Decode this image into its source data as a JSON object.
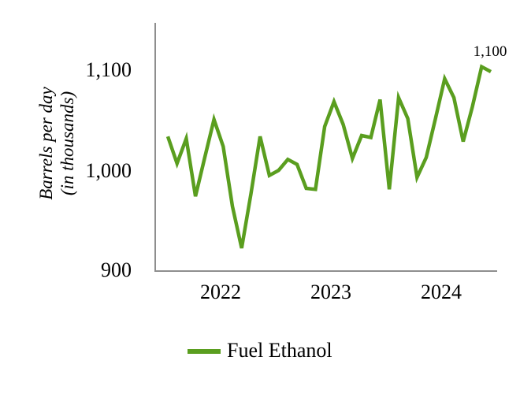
{
  "chart": {
    "y_axis": {
      "title_line1": "Barrels per day",
      "title_line2": "(in thousands)",
      "ticks": [
        "1,100",
        "1,000",
        "900"
      ]
    },
    "x_axis": {
      "ticks": [
        "2022",
        "2023",
        "2024"
      ]
    },
    "annotation": "1,100",
    "legend": {
      "label": "Fuel Ethanol"
    }
  },
  "chart_data": {
    "type": "line",
    "title": "",
    "xlabel": "",
    "ylabel": "Barrels per day (in thousands)",
    "unit": "thousand barrels per day",
    "series": [
      {
        "name": "Fuel Ethanol",
        "color": "#5a9e1f",
        "x": [
          "2022-01",
          "2022-02",
          "2022-03",
          "2022-04",
          "2022-05",
          "2022-06",
          "2022-07",
          "2022-08",
          "2022-09",
          "2022-10",
          "2022-11",
          "2022-12",
          "2023-01",
          "2023-02",
          "2023-03",
          "2023-04",
          "2023-05",
          "2023-06",
          "2023-07",
          "2023-08",
          "2023-09",
          "2023-10",
          "2023-11",
          "2023-12",
          "2024-01",
          "2024-02",
          "2024-03",
          "2024-04",
          "2024-05",
          "2024-06",
          "2024-07",
          "2024-08",
          "2024-09",
          "2024-10",
          "2024-11",
          "2024-12"
        ],
        "values": [
          1035,
          1008,
          1033,
          975,
          1014,
          1052,
          1025,
          965,
          923,
          977,
          1035,
          996,
          1001,
          1012,
          1007,
          983,
          982,
          1045,
          1070,
          1047,
          1013,
          1036,
          1034,
          1072,
          982,
          1074,
          1053,
          994,
          1014,
          1053,
          1093,
          1074,
          1030,
          1065,
          1105,
          1100
        ]
      }
    ],
    "x_tick_labels": [
      "2022",
      "2023",
      "2024"
    ],
    "yticks": [
      900,
      1000,
      1100
    ],
    "ylim": [
      900,
      1150
    ],
    "grid": false,
    "legend_position": "bottom",
    "last_point_label": "1,100",
    "axis_color": "#8e8e8e"
  }
}
